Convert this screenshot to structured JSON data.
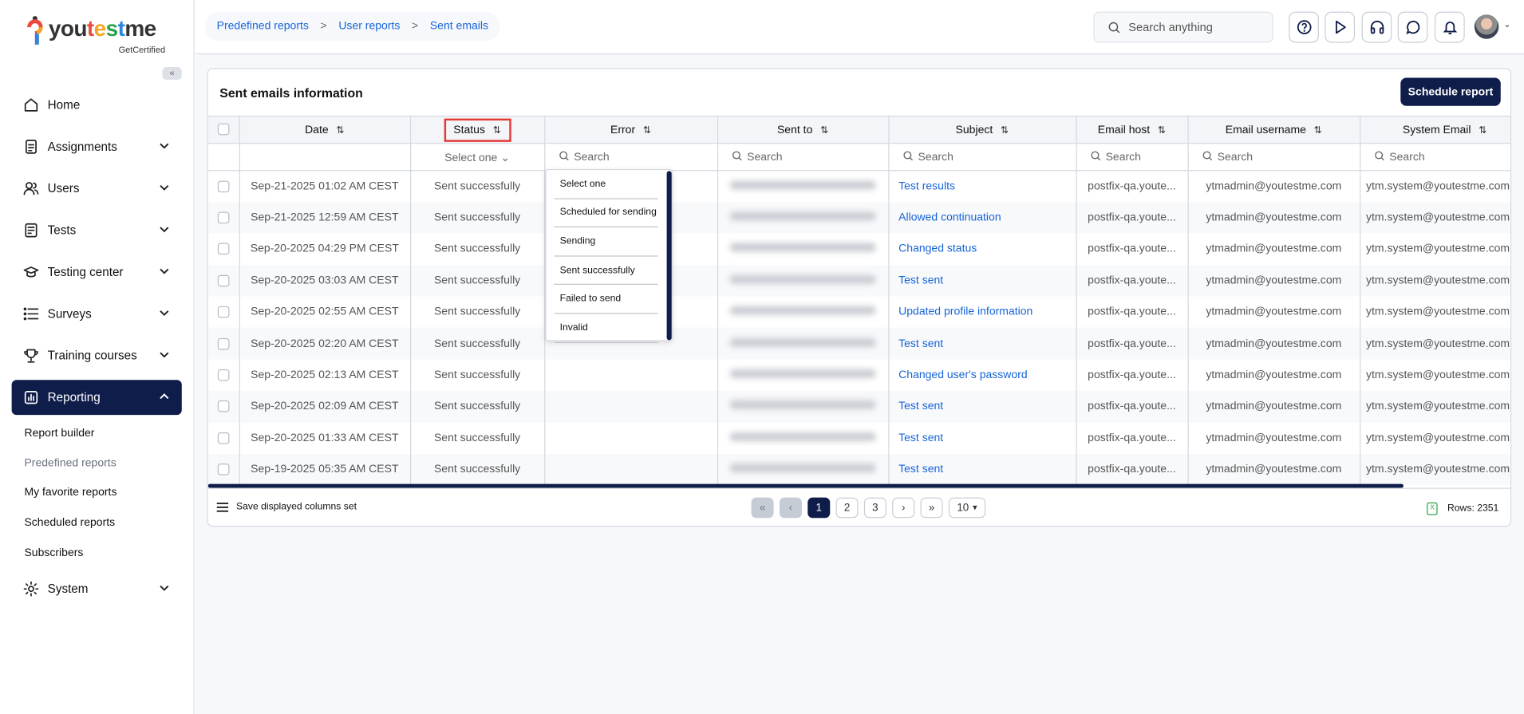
{
  "brand": {
    "name_parts": [
      "you",
      "t",
      "e",
      "s",
      "t",
      "me"
    ],
    "tagline": "GetCertified"
  },
  "sidebar": {
    "collapse_icon": "«",
    "items": [
      {
        "label": "Home",
        "icon": "home-icon",
        "expandable": false
      },
      {
        "label": "Assignments",
        "icon": "document-icon",
        "expandable": true
      },
      {
        "label": "Users",
        "icon": "users-icon",
        "expandable": true
      },
      {
        "label": "Tests",
        "icon": "test-icon",
        "expandable": true
      },
      {
        "label": "Testing center",
        "icon": "graduation-cap-icon",
        "expandable": true
      },
      {
        "label": "Surveys",
        "icon": "list-icon",
        "expandable": true
      },
      {
        "label": "Training courses",
        "icon": "trophy-icon",
        "expandable": true
      },
      {
        "label": "Reporting",
        "icon": "chart-icon",
        "expandable": true,
        "active": true
      },
      {
        "label": "System",
        "icon": "gear-icon",
        "expandable": true
      }
    ],
    "reporting_sub": [
      "Report builder",
      "Predefined reports",
      "My favorite reports",
      "Scheduled reports",
      "Subscribers"
    ],
    "current_sub": "Predefined reports"
  },
  "breadcrumb": [
    "Predefined reports",
    "User reports",
    "Sent emails"
  ],
  "breadcrumb_sep": ">",
  "search": {
    "placeholder": "Search anything"
  },
  "header_icons": [
    "help-icon",
    "play-icon",
    "headset-icon",
    "chat-icon",
    "bell-icon"
  ],
  "card": {
    "title": "Sent emails information",
    "schedule_button": "Schedule report"
  },
  "table": {
    "columns": [
      "Date",
      "Status",
      "Error",
      "Sent to",
      "Subject",
      "Email host",
      "Email username",
      "System Email"
    ],
    "filter_placeholder": "Search",
    "status_filter": "Select one",
    "rows": [
      {
        "date": "Sep-21-2025 01:02 AM CEST",
        "status": "Sent successfully",
        "error": "",
        "subject": "Test results",
        "host": "postfix-qa.youte...",
        "username": "ytmadmin@youtestme.com",
        "system": "ytm.system@youtestme.com"
      },
      {
        "date": "Sep-21-2025 12:59 AM CEST",
        "status": "Sent successfully",
        "error": "",
        "subject": "Allowed continuation",
        "host": "postfix-qa.youte...",
        "username": "ytmadmin@youtestme.com",
        "system": "ytm.system@youtestme.com"
      },
      {
        "date": "Sep-20-2025 04:29 PM CEST",
        "status": "Sent successfully",
        "error": "",
        "subject": "Changed status",
        "host": "postfix-qa.youte...",
        "username": "ytmadmin@youtestme.com",
        "system": "ytm.system@youtestme.com"
      },
      {
        "date": "Sep-20-2025 03:03 AM CEST",
        "status": "Sent successfully",
        "error": "",
        "subject": "Test sent",
        "host": "postfix-qa.youte...",
        "username": "ytmadmin@youtestme.com",
        "system": "ytm.system@youtestme.com"
      },
      {
        "date": "Sep-20-2025 02:55 AM CEST",
        "status": "Sent successfully",
        "error": "",
        "subject": "Updated profile information",
        "host": "postfix-qa.youte...",
        "username": "ytmadmin@youtestme.com",
        "system": "ytm.system@youtestme.com"
      },
      {
        "date": "Sep-20-2025 02:20 AM CEST",
        "status": "Sent successfully",
        "error": "",
        "subject": "Test sent",
        "host": "postfix-qa.youte...",
        "username": "ytmadmin@youtestme.com",
        "system": "ytm.system@youtestme.com"
      },
      {
        "date": "Sep-20-2025 02:13 AM CEST",
        "status": "Sent successfully",
        "error": "",
        "subject": "Changed user's password",
        "host": "postfix-qa.youte...",
        "username": "ytmadmin@youtestme.com",
        "system": "ytm.system@youtestme.com"
      },
      {
        "date": "Sep-20-2025 02:09 AM CEST",
        "status": "Sent successfully",
        "error": "",
        "subject": "Test sent",
        "host": "postfix-qa.youte...",
        "username": "ytmadmin@youtestme.com",
        "system": "ytm.system@youtestme.com"
      },
      {
        "date": "Sep-20-2025 01:33 AM CEST",
        "status": "Sent successfully",
        "error": "",
        "subject": "Test sent",
        "host": "postfix-qa.youte...",
        "username": "ytmadmin@youtestme.com",
        "system": "ytm.system@youtestme.com"
      },
      {
        "date": "Sep-19-2025 05:35 AM CEST",
        "status": "Sent successfully",
        "error": "",
        "subject": "Test sent",
        "host": "postfix-qa.youte...",
        "username": "ytmadmin@youtestme.com",
        "system": "ytm.system@youtestme.com"
      }
    ]
  },
  "status_dropdown": {
    "options": [
      "Select one",
      "Scheduled for sending",
      "Sending",
      "Sent successfully",
      "Failed to send",
      "Invalid"
    ]
  },
  "footer": {
    "save_columns": "Save displayed columns set",
    "pages": [
      "1",
      "2",
      "3"
    ],
    "current_page": "1",
    "page_size": "10",
    "rows_label": "Rows: 2351"
  },
  "colors": {
    "primary": "#0f1d4a",
    "link": "#1764d8",
    "highlight": "#e53935"
  }
}
